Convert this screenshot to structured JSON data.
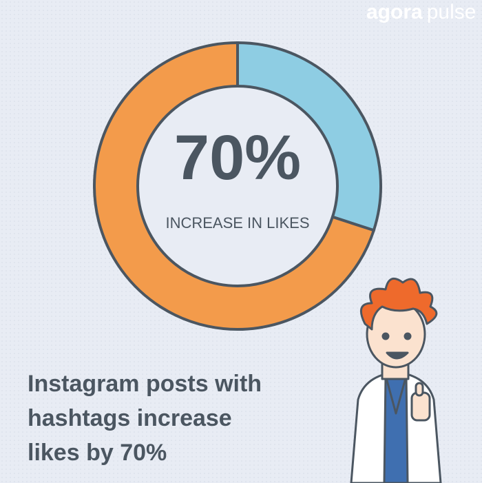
{
  "brand": {
    "first": "agora",
    "second": "pulse"
  },
  "chart_data": {
    "type": "donut",
    "values": [
      30,
      70
    ],
    "colors": [
      "#8ecde3",
      "#f39b4b"
    ],
    "center_value": "70%",
    "center_label": "INCREASE IN LIKES",
    "caption": [
      "Instagram posts with",
      "hashtags increase",
      "likes by 70%"
    ]
  }
}
